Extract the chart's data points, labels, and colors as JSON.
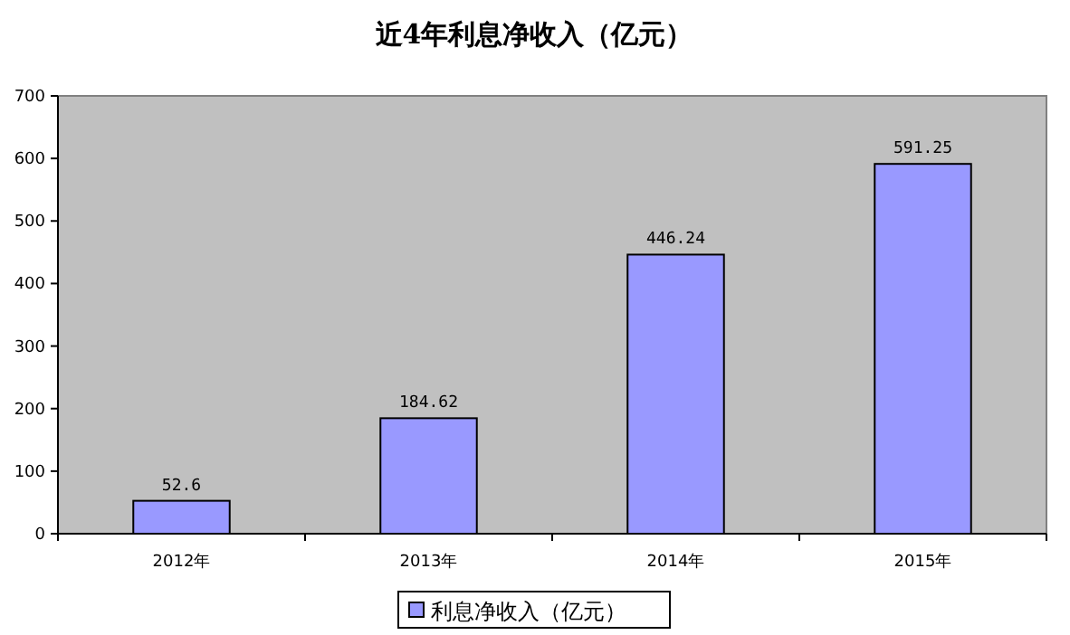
{
  "chart_data": {
    "type": "bar",
    "title": "近4年利息净收入（亿元）",
    "categories": [
      "2012年",
      "2013年",
      "2014年",
      "2015年"
    ],
    "series": [
      {
        "name": "利息净收入（亿元）",
        "color": "#9999ff",
        "values": [
          52.6,
          184.62,
          446.24,
          591.25
        ]
      }
    ],
    "ylim": [
      0,
      700
    ],
    "yticks": [
      0,
      100,
      200,
      300,
      400,
      500,
      600,
      700
    ],
    "data_labels": true,
    "grid": false,
    "legend": "bottom"
  }
}
